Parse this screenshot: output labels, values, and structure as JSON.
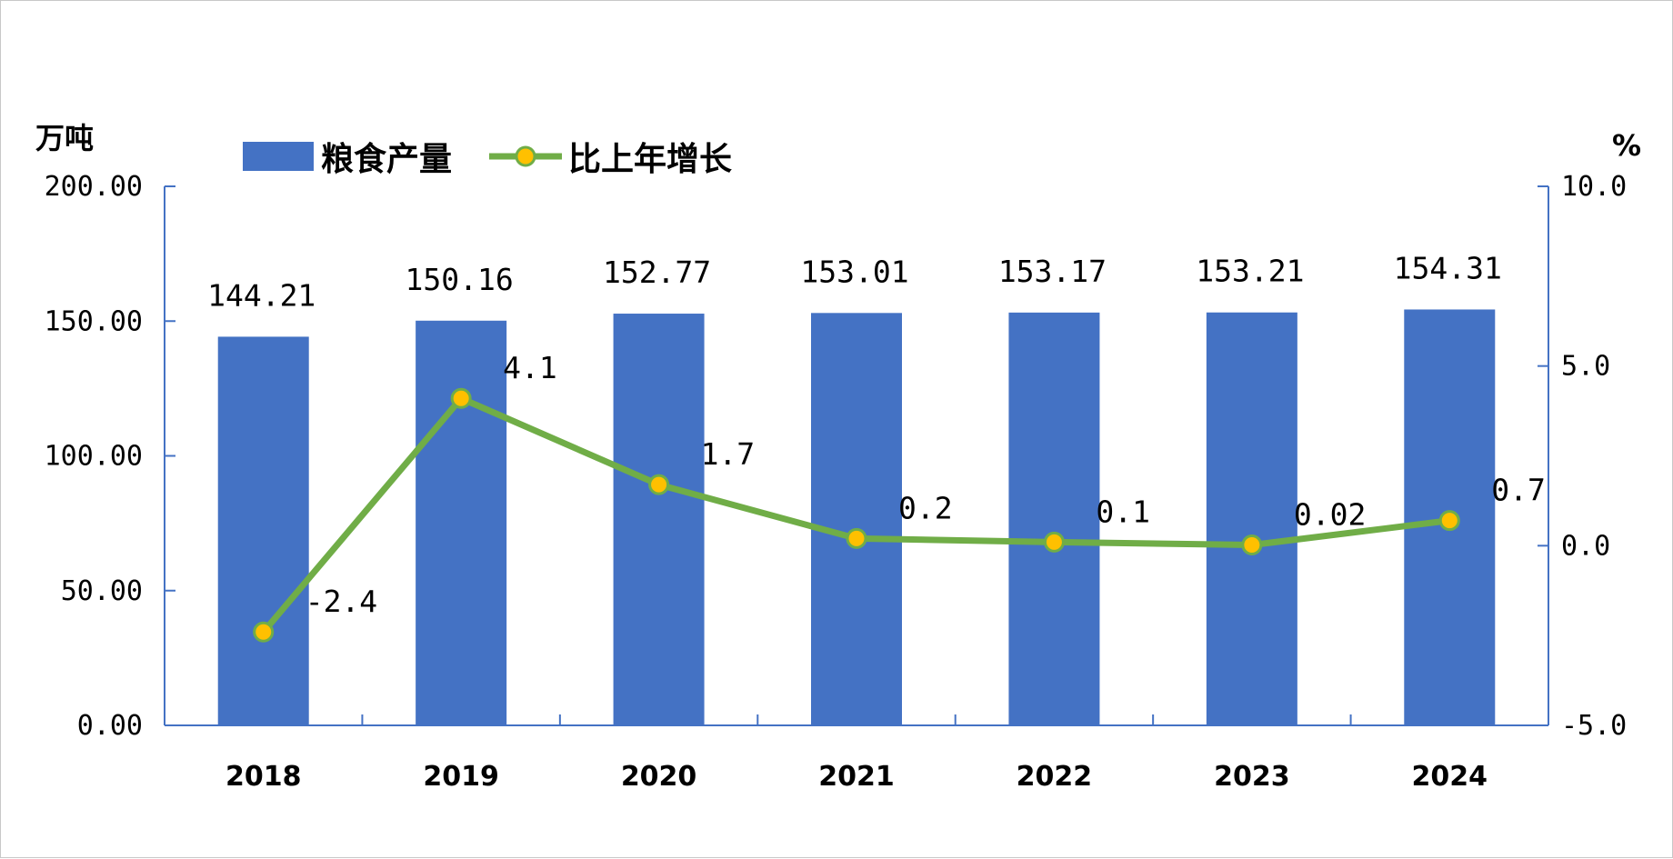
{
  "chart_data": {
    "type": "bar",
    "categories": [
      "2018",
      "2019",
      "2020",
      "2021",
      "2022",
      "2023",
      "2024"
    ],
    "series": [
      {
        "name": "粮食产量",
        "type": "bar",
        "axis": "left",
        "values": [
          144.21,
          150.16,
          152.77,
          153.01,
          153.17,
          153.21,
          154.31
        ],
        "labels": [
          "144.21",
          "150.16",
          "152.77",
          "153.01",
          "153.17",
          "153.21",
          "154.31"
        ]
      },
      {
        "name": "比上年增长",
        "type": "line",
        "axis": "right",
        "values": [
          -2.4,
          4.1,
          1.7,
          0.2,
          0.1,
          0.02,
          0.7
        ],
        "labels": [
          "-2.4",
          "4.1",
          "1.7",
          "0.2",
          "0.1",
          "0.02",
          "0.7"
        ]
      }
    ],
    "y_left": {
      "unit": "万吨",
      "ylim": [
        0,
        200
      ],
      "ticks": [
        "0.00",
        "50.00",
        "100.00",
        "150.00",
        "200.00"
      ]
    },
    "y_right": {
      "unit": "%",
      "ylim": [
        -5,
        10
      ],
      "ticks": [
        "-5.0",
        "0.0",
        "5.0",
        "10.0"
      ]
    },
    "legend_position": "top-left",
    "grid": false,
    "colors": {
      "bar": "#4472C4",
      "line": "#70AD47",
      "marker": "#FFC000",
      "axis": "#4472C4"
    }
  }
}
